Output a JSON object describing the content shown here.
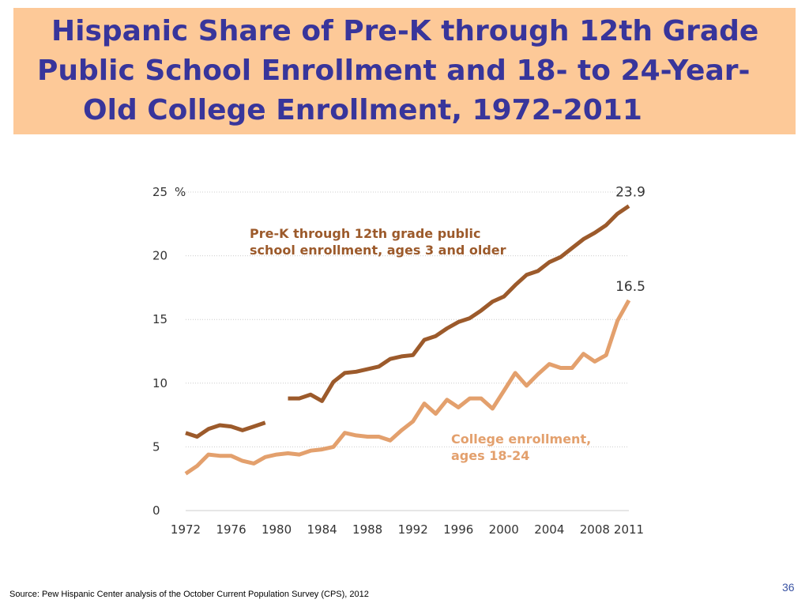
{
  "title": {
    "line1": "Hispanic Share of Pre-K through 12th Grade",
    "line2": "Public School Enrollment and 18- to 24-Year-",
    "line3": "Old College Enrollment, 1972-2011"
  },
  "footer": {
    "source": "Source:  Pew Hispanic Center analysis of the October Current Population Survey (CPS), 2012",
    "page_number": "36"
  },
  "colors": {
    "title_bg": "#fdc998",
    "title_text": "#38359b",
    "prek_series": "#9c5a2b",
    "college_series": "#e3a06d",
    "grid": "#cccccc"
  },
  "chart_data": {
    "type": "line",
    "ylim": [
      0,
      25
    ],
    "y_ticks": [
      "25",
      "20",
      "15",
      "10",
      "5",
      "0"
    ],
    "y_unit_label": "%",
    "x_tick_labels": [
      "1972",
      "1976",
      "1980",
      "1984",
      "1988",
      "1992",
      "1996",
      "2000",
      "2004",
      "2008",
      "2011"
    ],
    "grid": true,
    "series": [
      {
        "name": "Pre-K through 12th grade public school enrollment, ages 3 and older",
        "label_lines": [
          "Pre-K through 12th grade public",
          "school enrollment, ages 3 and older"
        ],
        "end_label": "23.9",
        "points": [
          [
            1972,
            6.1
          ],
          [
            1973,
            5.8
          ],
          [
            1974,
            6.4
          ],
          [
            1975,
            6.7
          ],
          [
            1976,
            6.6
          ],
          [
            1977,
            6.3
          ],
          [
            1978,
            6.6
          ],
          [
            1979,
            6.9
          ],
          [
            1981,
            8.8
          ],
          [
            1982,
            8.8
          ],
          [
            1983,
            9.1
          ],
          [
            1984,
            8.6
          ],
          [
            1985,
            10.1
          ],
          [
            1986,
            10.8
          ],
          [
            1987,
            10.9
          ],
          [
            1988,
            11.1
          ],
          [
            1989,
            11.3
          ],
          [
            1990,
            11.9
          ],
          [
            1991,
            12.1
          ],
          [
            1992,
            12.2
          ],
          [
            1993,
            13.4
          ],
          [
            1994,
            13.7
          ],
          [
            1995,
            14.3
          ],
          [
            1996,
            14.8
          ],
          [
            1997,
            15.1
          ],
          [
            1998,
            15.7
          ],
          [
            1999,
            16.4
          ],
          [
            2000,
            16.8
          ],
          [
            2001,
            17.7
          ],
          [
            2002,
            18.5
          ],
          [
            2003,
            18.8
          ],
          [
            2004,
            19.5
          ],
          [
            2005,
            19.9
          ],
          [
            2006,
            20.6
          ],
          [
            2007,
            21.3
          ],
          [
            2008,
            21.8
          ],
          [
            2009,
            22.4
          ],
          [
            2010,
            23.3
          ],
          [
            2011,
            23.9
          ]
        ]
      },
      {
        "name": "College enrollment, ages 18-24",
        "label_lines": [
          "College enrollment,",
          "ages 18-24"
        ],
        "end_label": "16.5",
        "points": [
          [
            1972,
            2.9
          ],
          [
            1973,
            3.5
          ],
          [
            1974,
            4.4
          ],
          [
            1975,
            4.3
          ],
          [
            1976,
            4.3
          ],
          [
            1977,
            3.9
          ],
          [
            1978,
            3.7
          ],
          [
            1979,
            4.2
          ],
          [
            1980,
            4.4
          ],
          [
            1981,
            4.5
          ],
          [
            1982,
            4.4
          ],
          [
            1983,
            4.7
          ],
          [
            1984,
            4.8
          ],
          [
            1985,
            5.0
          ],
          [
            1986,
            6.1
          ],
          [
            1987,
            5.9
          ],
          [
            1988,
            5.8
          ],
          [
            1989,
            5.8
          ],
          [
            1990,
            5.5
          ],
          [
            1991,
            6.3
          ],
          [
            1992,
            7.0
          ],
          [
            1993,
            8.4
          ],
          [
            1994,
            7.6
          ],
          [
            1995,
            8.7
          ],
          [
            1996,
            8.1
          ],
          [
            1997,
            8.8
          ],
          [
            1998,
            8.8
          ],
          [
            1999,
            8.0
          ],
          [
            2000,
            9.4
          ],
          [
            2001,
            10.8
          ],
          [
            2002,
            9.8
          ],
          [
            2003,
            10.7
          ],
          [
            2004,
            11.5
          ],
          [
            2005,
            11.2
          ],
          [
            2006,
            11.2
          ],
          [
            2007,
            12.3
          ],
          [
            2008,
            11.7
          ],
          [
            2009,
            12.2
          ],
          [
            2010,
            14.9
          ],
          [
            2011,
            16.5
          ]
        ]
      }
    ]
  }
}
